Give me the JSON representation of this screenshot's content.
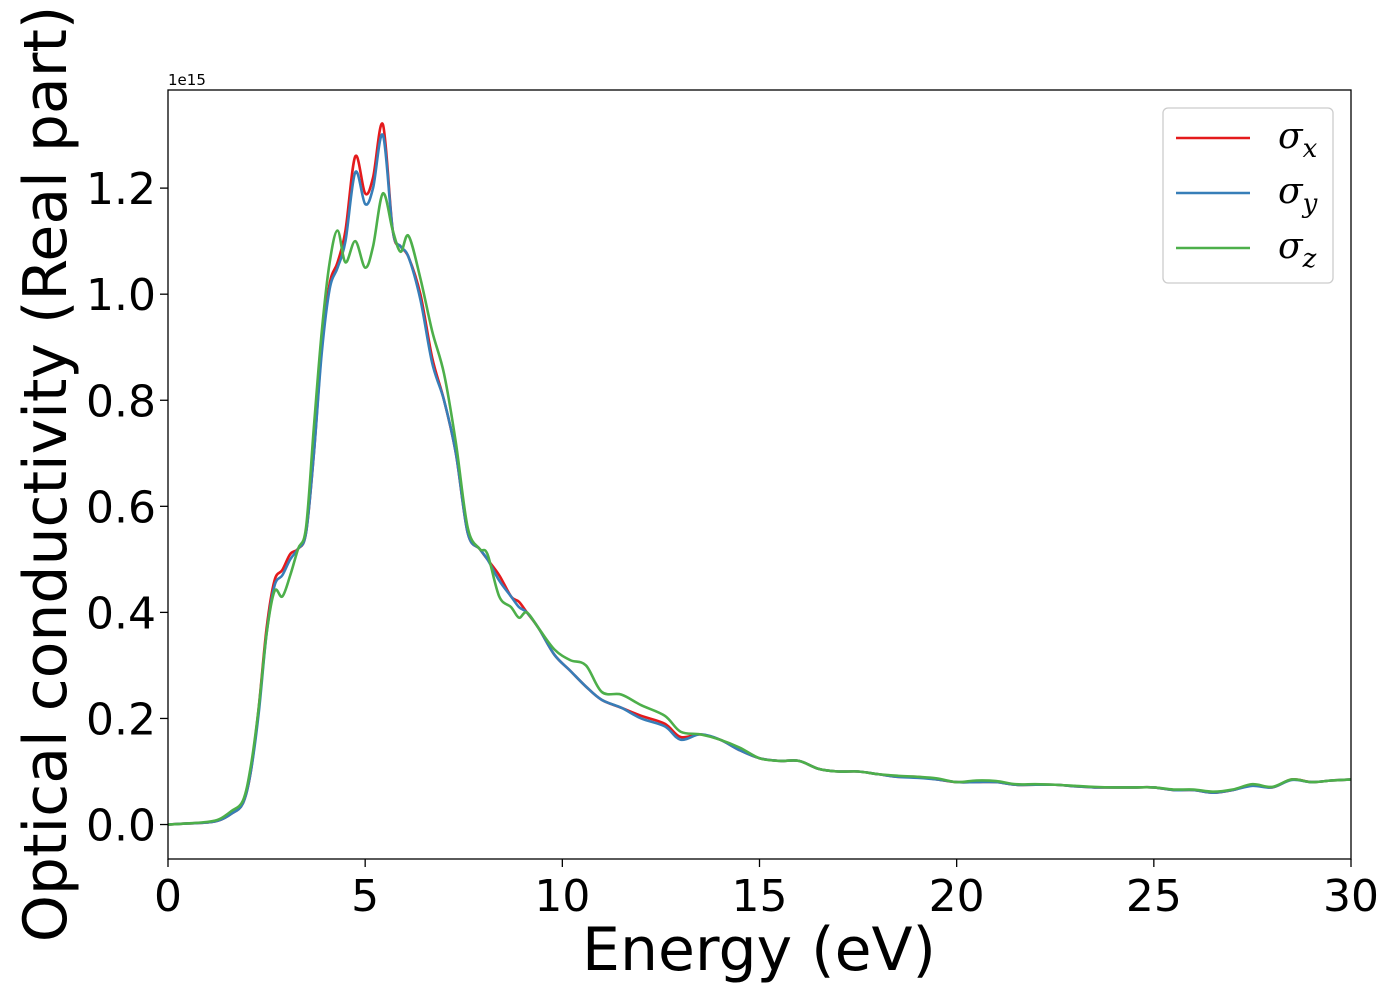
{
  "chart_data": {
    "type": "line",
    "title": "",
    "xlabel": "Energy (eV)",
    "ylabel": "Optical conductivity (Real part)",
    "y_exponent_label": "1e15",
    "y_scale": 1000000000000000.0,
    "xlim": [
      0,
      30
    ],
    "ylim": [
      -0.065,
      1.385
    ],
    "x_ticks": [
      0,
      5,
      10,
      15,
      20,
      25,
      30
    ],
    "x_tick_labels": [
      "0",
      "5",
      "10",
      "15",
      "20",
      "25",
      "30"
    ],
    "y_ticks": [
      0.0,
      0.2,
      0.4,
      0.6,
      0.8,
      1.0,
      1.2
    ],
    "y_tick_labels": [
      "0.0",
      "0.2",
      "0.4",
      "0.6",
      "0.8",
      "1.0",
      "1.2"
    ],
    "grid": false,
    "legend_position": "top-right",
    "series": [
      {
        "name": "σx",
        "label_base": "σ",
        "label_sub": "x",
        "color": "#e41a1c",
        "x": [
          0,
          0.5,
          1,
          1.3,
          1.6,
          1.9,
          2.1,
          2.3,
          2.5,
          2.7,
          2.9,
          3.1,
          3.3,
          3.5,
          3.7,
          3.9,
          4.1,
          4.3,
          4.5,
          4.75,
          5.0,
          5.2,
          5.45,
          5.7,
          5.9,
          6.1,
          6.4,
          6.7,
          7.0,
          7.3,
          7.6,
          7.9,
          8.1,
          8.4,
          8.7,
          8.9,
          9.1,
          9.4,
          9.8,
          10.2,
          10.6,
          11.0,
          11.5,
          12.0,
          12.6,
          13.0,
          13.5,
          14.0,
          14.5,
          15.0,
          15.5,
          16.0,
          16.5,
          17.0,
          17.5,
          18.0,
          18.5,
          19.0,
          19.5,
          20.0,
          20.5,
          21.0,
          21.5,
          22.0,
          22.5,
          23.0,
          23.5,
          24.0,
          24.5,
          25.0,
          25.5,
          26.0,
          26.5,
          27.0,
          27.5,
          28.0,
          28.5,
          29.0,
          29.5,
          30.0
        ],
        "y": [
          0,
          0.002,
          0.004,
          0.008,
          0.02,
          0.04,
          0.1,
          0.22,
          0.37,
          0.46,
          0.48,
          0.51,
          0.52,
          0.55,
          0.7,
          0.9,
          1.02,
          1.06,
          1.12,
          1.26,
          1.19,
          1.22,
          1.32,
          1.12,
          1.09,
          1.07,
          1.0,
          0.88,
          0.8,
          0.7,
          0.55,
          0.52,
          0.5,
          0.47,
          0.43,
          0.42,
          0.4,
          0.37,
          0.32,
          0.29,
          0.26,
          0.235,
          0.22,
          0.205,
          0.19,
          0.165,
          0.17,
          0.16,
          0.14,
          0.125,
          0.12,
          0.12,
          0.105,
          0.1,
          0.1,
          0.095,
          0.09,
          0.09,
          0.085,
          0.08,
          0.08,
          0.08,
          0.075,
          0.075,
          0.075,
          0.072,
          0.07,
          0.07,
          0.07,
          0.07,
          0.065,
          0.065,
          0.06,
          0.065,
          0.075,
          0.07,
          0.085,
          0.08,
          0.083,
          0.085
        ]
      },
      {
        "name": "σy",
        "label_base": "σ",
        "label_sub": "y",
        "color": "#377eb8",
        "x": [
          0,
          0.5,
          1,
          1.3,
          1.6,
          1.9,
          2.1,
          2.3,
          2.5,
          2.7,
          2.9,
          3.1,
          3.3,
          3.5,
          3.7,
          3.9,
          4.1,
          4.3,
          4.5,
          4.75,
          5.0,
          5.2,
          5.45,
          5.7,
          5.9,
          6.1,
          6.4,
          6.7,
          7.0,
          7.3,
          7.6,
          7.9,
          8.1,
          8.4,
          8.7,
          8.9,
          9.1,
          9.4,
          9.8,
          10.2,
          10.6,
          11.0,
          11.5,
          12.0,
          12.6,
          13.0,
          13.5,
          14.0,
          14.5,
          15.0,
          15.5,
          16.0,
          16.5,
          17.0,
          17.5,
          18.0,
          18.5,
          19.0,
          19.5,
          20.0,
          20.5,
          21.0,
          21.5,
          22.0,
          22.5,
          23.0,
          23.5,
          24.0,
          24.5,
          25.0,
          25.5,
          26.0,
          26.5,
          27.0,
          27.5,
          28.0,
          28.5,
          29.0,
          29.5,
          30.0
        ],
        "y": [
          0,
          0.002,
          0.004,
          0.008,
          0.02,
          0.04,
          0.1,
          0.21,
          0.36,
          0.45,
          0.47,
          0.5,
          0.52,
          0.55,
          0.7,
          0.89,
          1.01,
          1.05,
          1.1,
          1.23,
          1.17,
          1.2,
          1.3,
          1.12,
          1.09,
          1.07,
          0.99,
          0.87,
          0.8,
          0.7,
          0.55,
          0.52,
          0.5,
          0.46,
          0.43,
          0.41,
          0.4,
          0.37,
          0.32,
          0.29,
          0.26,
          0.235,
          0.22,
          0.2,
          0.185,
          0.16,
          0.17,
          0.16,
          0.14,
          0.125,
          0.12,
          0.12,
          0.105,
          0.1,
          0.1,
          0.095,
          0.09,
          0.088,
          0.085,
          0.08,
          0.08,
          0.08,
          0.075,
          0.075,
          0.075,
          0.072,
          0.07,
          0.07,
          0.07,
          0.07,
          0.065,
          0.065,
          0.06,
          0.065,
          0.073,
          0.07,
          0.084,
          0.08,
          0.083,
          0.085
        ]
      },
      {
        "name": "σz",
        "label_base": "σ",
        "label_sub": "z",
        "color": "#4daf4a",
        "x": [
          0,
          0.5,
          1,
          1.3,
          1.6,
          1.9,
          2.1,
          2.3,
          2.5,
          2.7,
          2.9,
          3.1,
          3.3,
          3.5,
          3.7,
          3.9,
          4.1,
          4.3,
          4.5,
          4.75,
          5.0,
          5.2,
          5.45,
          5.7,
          5.9,
          6.1,
          6.4,
          6.7,
          7.0,
          7.3,
          7.6,
          7.9,
          8.1,
          8.4,
          8.7,
          8.9,
          9.1,
          9.4,
          9.8,
          10.2,
          10.6,
          11.0,
          11.5,
          12.0,
          12.6,
          13.0,
          13.5,
          14.0,
          14.5,
          15.0,
          15.5,
          16.0,
          16.5,
          17.0,
          17.5,
          18.0,
          18.5,
          19.0,
          19.5,
          20.0,
          20.5,
          21.0,
          21.5,
          22.0,
          22.5,
          23.0,
          23.5,
          24.0,
          24.5,
          25.0,
          25.5,
          26.0,
          26.5,
          27.0,
          27.5,
          28.0,
          28.5,
          29.0,
          29.5,
          30.0
        ],
        "y": [
          0,
          0.002,
          0.005,
          0.01,
          0.025,
          0.045,
          0.11,
          0.22,
          0.36,
          0.44,
          0.43,
          0.47,
          0.52,
          0.56,
          0.75,
          0.93,
          1.06,
          1.12,
          1.06,
          1.1,
          1.05,
          1.09,
          1.19,
          1.12,
          1.08,
          1.11,
          1.03,
          0.93,
          0.85,
          0.72,
          0.56,
          0.52,
          0.51,
          0.43,
          0.41,
          0.39,
          0.4,
          0.37,
          0.33,
          0.31,
          0.3,
          0.25,
          0.245,
          0.225,
          0.205,
          0.175,
          0.17,
          0.16,
          0.145,
          0.125,
          0.12,
          0.12,
          0.105,
          0.1,
          0.1,
          0.095,
          0.092,
          0.09,
          0.087,
          0.08,
          0.083,
          0.082,
          0.076,
          0.076,
          0.075,
          0.073,
          0.071,
          0.07,
          0.07,
          0.07,
          0.066,
          0.066,
          0.062,
          0.066,
          0.076,
          0.071,
          0.085,
          0.08,
          0.083,
          0.085
        ]
      }
    ]
  }
}
